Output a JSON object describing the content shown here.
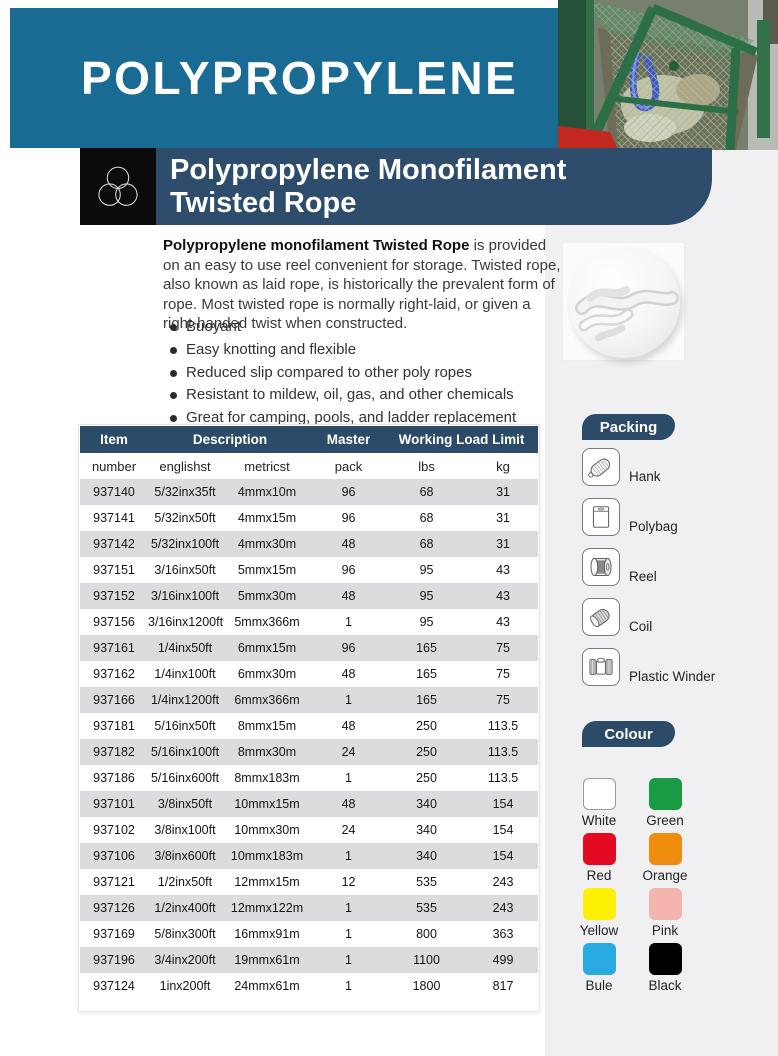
{
  "masthead": {
    "title": "POLYPROPYLENE"
  },
  "banner": {
    "title_line1": "Polypropylene Monofilament",
    "title_line2": "Twisted Rope",
    "logo": "three-circles-logo"
  },
  "intro": {
    "lead_bold": "Polypropylene monofilament Twisted Rope",
    "lead_rest": " is provided on an easy to use reel convenient for storage. Twisted rope, also known as laid rope, is historically the prevalent form of rope. Most twisted rope is normally right-laid, or given a right-handed twist when constructed.",
    "bullets": [
      "Buoyant",
      "Easy knotting and flexible",
      "Reduced slip compared to other poly ropes",
      "Resistant to mildew, oil, gas, and other chemicals",
      "Great for camping, pools, and ladder replacement"
    ]
  },
  "table": {
    "headers": {
      "item": "Item",
      "description": "Description",
      "master": "Master",
      "working_load_limit": "Working Load Limit"
    },
    "subheaders": [
      "number",
      "englishst",
      "metricst",
      "pack",
      "lbs",
      "kg"
    ],
    "rows": [
      [
        "937140",
        "5/32inx35ft",
        "4mmx10m",
        "96",
        "68",
        "31"
      ],
      [
        "937141",
        "5/32inx50ft",
        "4mmx15m",
        "96",
        "68",
        "31"
      ],
      [
        "937142",
        "5/32inx100ft",
        "4mmx30m",
        "48",
        "68",
        "31"
      ],
      [
        "937151",
        "3/16inx50ft",
        "5mmx15m",
        "96",
        "95",
        "43"
      ],
      [
        "937152",
        "3/16inx100ft",
        "5mmx30m",
        "48",
        "95",
        "43"
      ],
      [
        "937156",
        "3/16inx1200ft",
        "5mmx366m",
        "1",
        "95",
        "43"
      ],
      [
        "937161",
        "1/4inx50ft",
        "6mmx15m",
        "96",
        "165",
        "75"
      ],
      [
        "937162",
        "1/4inx100ft",
        "6mmx30m",
        "48",
        "165",
        "75"
      ],
      [
        "937166",
        "1/4inx1200ft",
        "6mmx366m",
        "1",
        "165",
        "75"
      ],
      [
        "937181",
        "5/16inx50ft",
        "8mmx15m",
        "48",
        "250",
        "113.5"
      ],
      [
        "937182",
        "5/16inx100ft",
        "8mmx30m",
        "24",
        "250",
        "113.5"
      ],
      [
        "937186",
        "5/16inx600ft",
        "8mmx183m",
        "1",
        "250",
        "113.5"
      ],
      [
        "937101",
        "3/8inx50ft",
        "10mmx15m",
        "48",
        "340",
        "154"
      ],
      [
        "937102",
        "3/8inx100ft",
        "10mmx30m",
        "24",
        "340",
        "154"
      ],
      [
        "937106",
        "3/8inx600ft",
        "10mmx183m",
        "1",
        "340",
        "154"
      ],
      [
        "937121",
        "1/2inx50ft",
        "12mmx15m",
        "12",
        "535",
        "243"
      ],
      [
        "937126",
        "1/2inx400ft",
        "12mmx122m",
        "1",
        "535",
        "243"
      ],
      [
        "937169",
        "5/8inx300ft",
        "16mmx91m",
        "1",
        "800",
        "363"
      ],
      [
        "937196",
        "3/4inx200ft",
        "19mmx61m",
        "1",
        "1100",
        "499"
      ],
      [
        "937124",
        "1inx200ft",
        "24mmx61m",
        "1",
        "1800",
        "817"
      ]
    ]
  },
  "packing": {
    "title": "Packing",
    "items": [
      {
        "icon": "hank-icon",
        "label": "Hank"
      },
      {
        "icon": "polybag-icon",
        "label": "Polybag"
      },
      {
        "icon": "reel-icon",
        "label": "Reel"
      },
      {
        "icon": "coil-icon",
        "label": "Coil"
      },
      {
        "icon": "plastic-winder-icon",
        "label": "Plastic Winder"
      }
    ]
  },
  "colour": {
    "title": "Colour",
    "swatches": [
      {
        "label": "White",
        "hex": "#ffffff"
      },
      {
        "label": "Green",
        "hex": "#189b41"
      },
      {
        "label": "Red",
        "hex": "#e30a21"
      },
      {
        "label": "Orange",
        "hex": "#ee8c0e"
      },
      {
        "label": "Yellow",
        "hex": "#fdf103"
      },
      {
        "label": "Pink",
        "hex": "#f4b5af"
      },
      {
        "label": "Bule",
        "hex": "#29abe2"
      },
      {
        "label": "Black",
        "hex": "#000000"
      }
    ]
  },
  "colors": {
    "teal_header": "#196b93",
    "banner_navy": "#2e4d6c",
    "table_header_navy": "#2b4b68",
    "row_shade": "#dcdcde",
    "sidebar_bg": "#f0f0f2"
  }
}
